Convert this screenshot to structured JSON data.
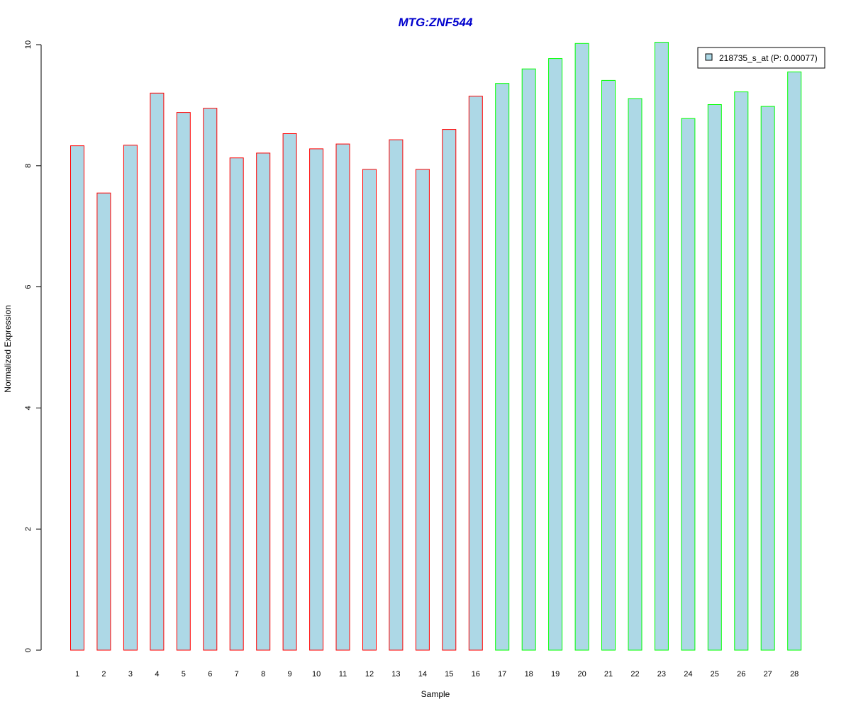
{
  "chart_data": {
    "type": "bar",
    "title": "MTG:ZNF544",
    "xlabel": "Sample",
    "ylabel": "Normalized Expression",
    "categories": [
      "1",
      "2",
      "3",
      "4",
      "5",
      "6",
      "7",
      "8",
      "9",
      "10",
      "11",
      "12",
      "13",
      "14",
      "15",
      "16",
      "17",
      "18",
      "19",
      "20",
      "21",
      "22",
      "23",
      "24",
      "25",
      "26",
      "27",
      "28"
    ],
    "series": [
      {
        "name": "218735_s_at (P: 0.00077)",
        "values": [
          8.33,
          7.55,
          8.34,
          9.2,
          8.88,
          8.95,
          8.13,
          8.21,
          8.53,
          8.28,
          8.36,
          7.94,
          8.43,
          7.94,
          8.6,
          9.15,
          9.36,
          9.6,
          9.77,
          10.02,
          9.41,
          9.11,
          10.04,
          8.78,
          9.01,
          9.22,
          8.98,
          9.55
        ]
      }
    ],
    "group_sizes": [
      16,
      12
    ],
    "ylim": [
      0,
      10
    ],
    "yticks": [
      0,
      2,
      4,
      6,
      8,
      10
    ],
    "legend_position": "top-right",
    "grid": false,
    "colors": {
      "bar_fill": "#add8e6",
      "group1_border": "#ff0000",
      "group2_border": "#00ff00",
      "title": "#0000cd"
    }
  }
}
